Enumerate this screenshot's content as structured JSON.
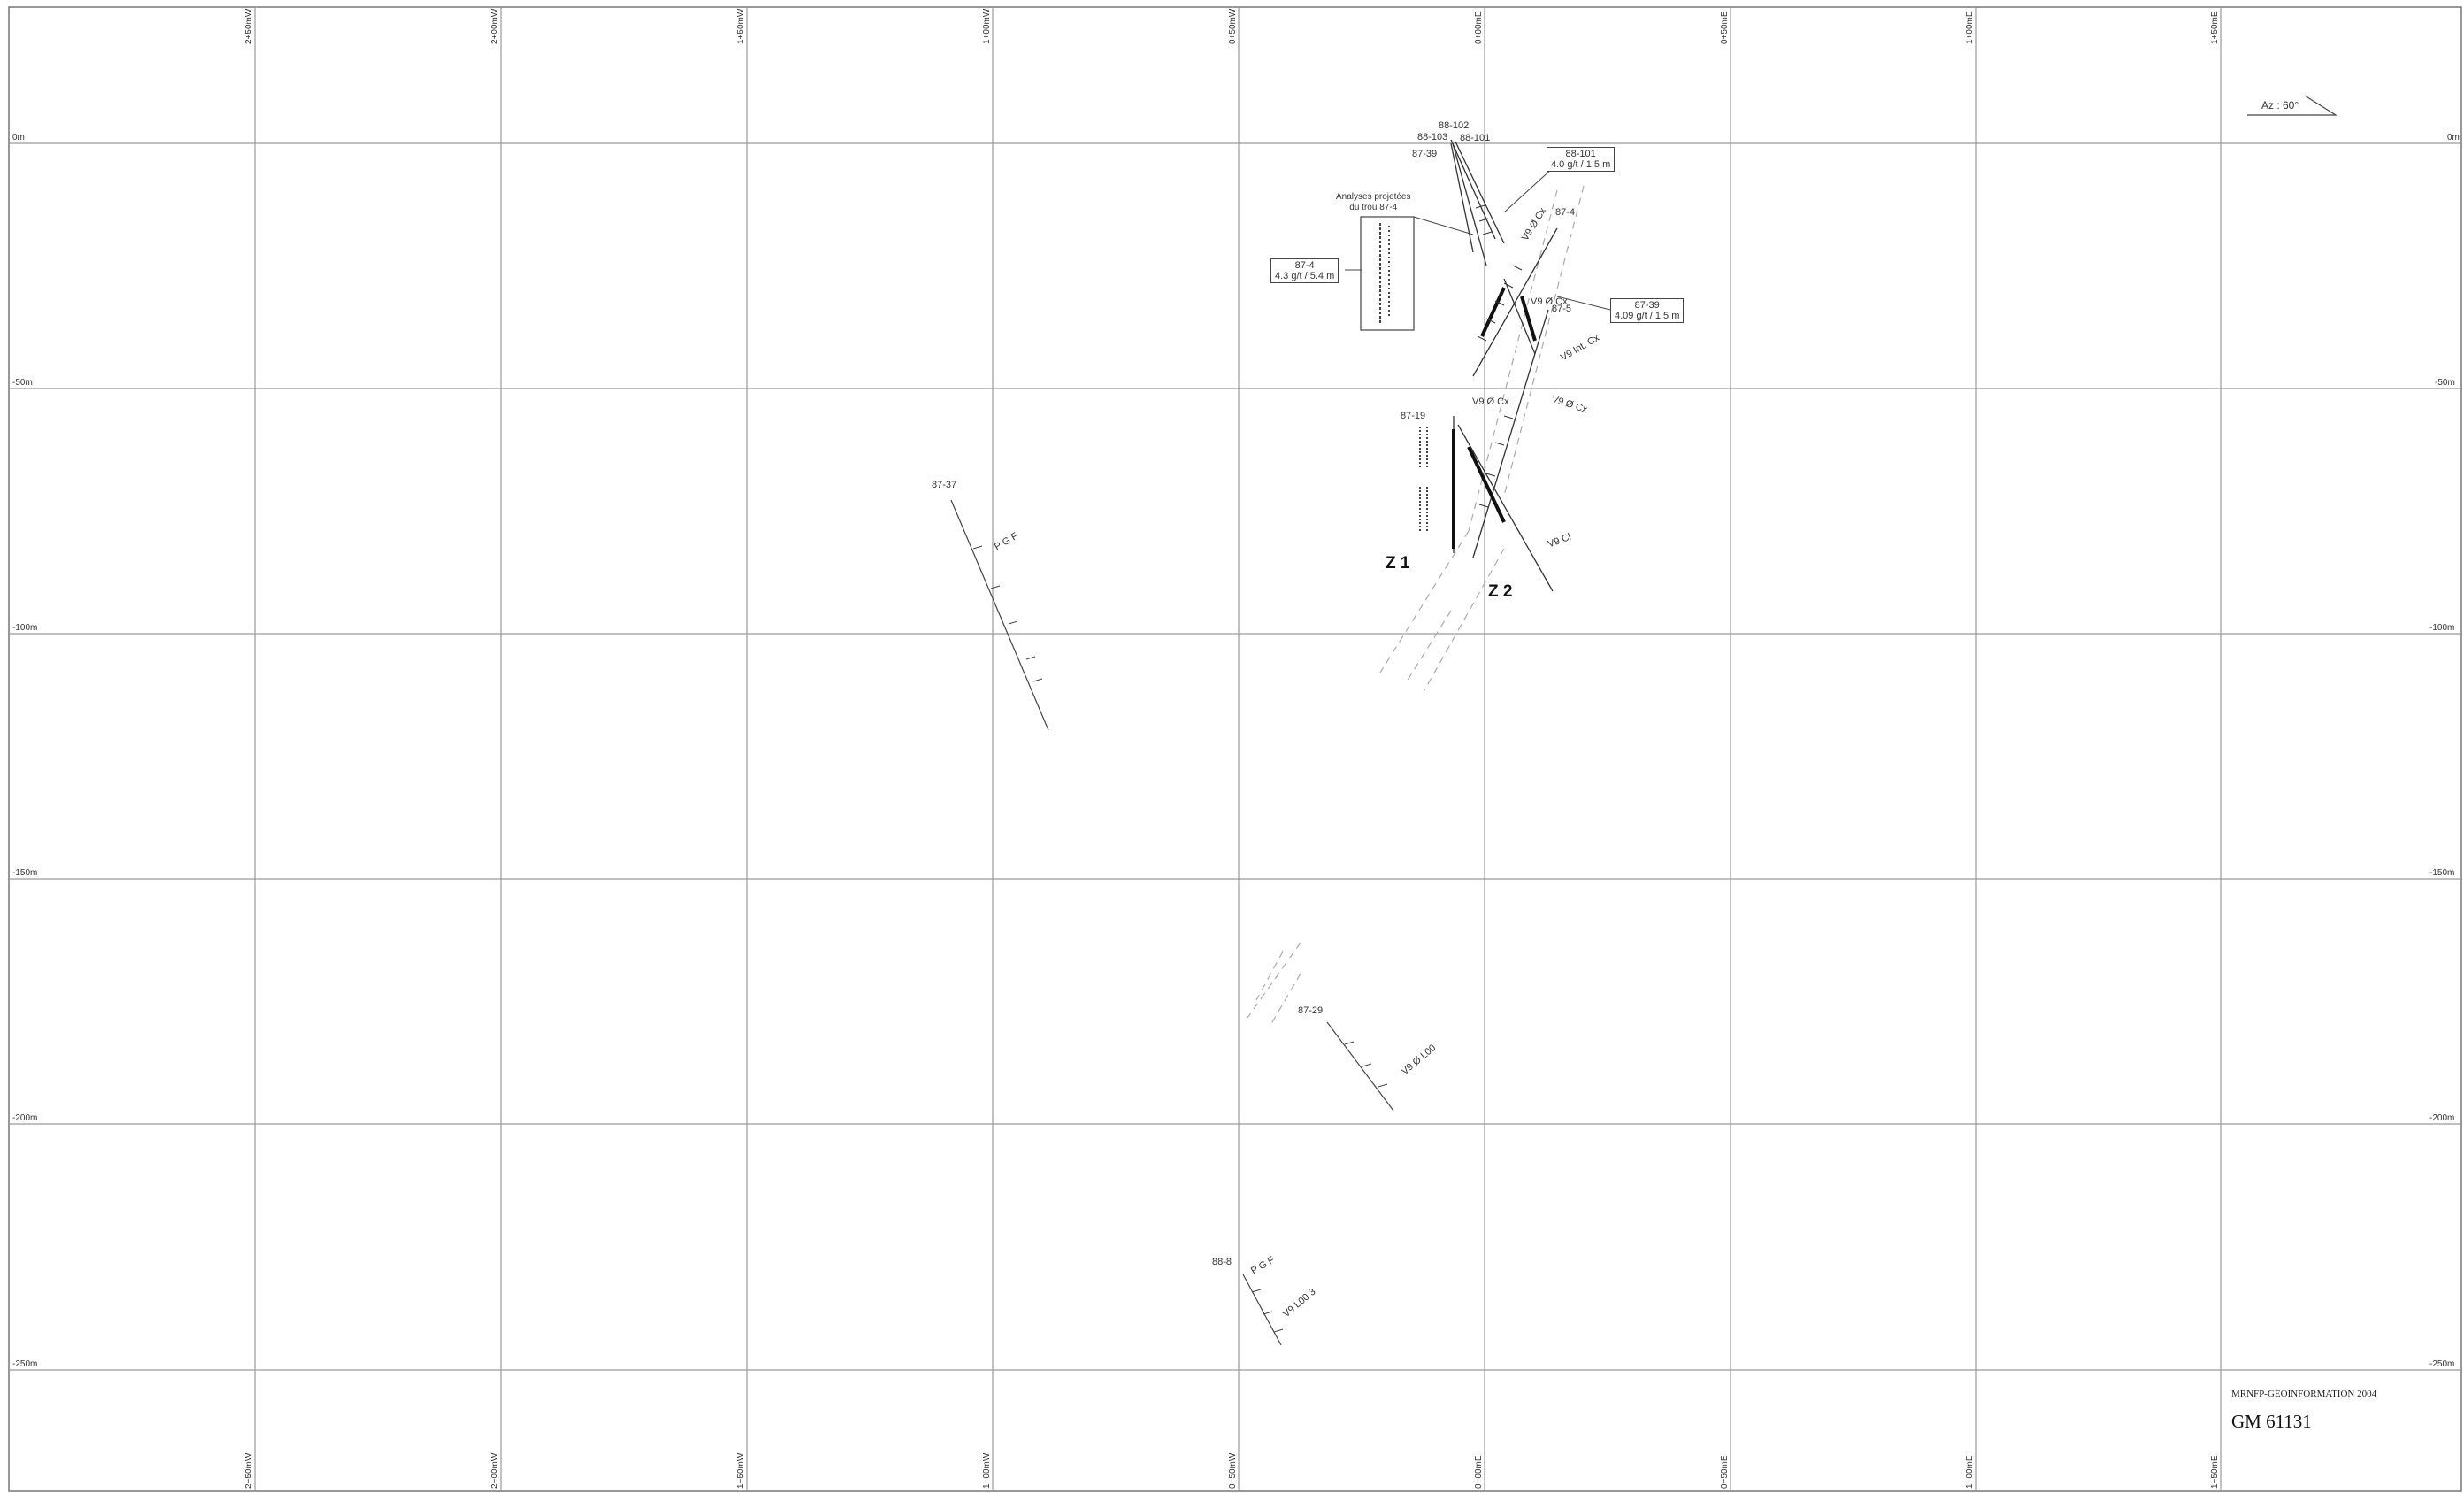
{
  "map": {
    "azimuth_label": "Az : 60°",
    "depth_levels": [
      "0m",
      "-50m",
      "-100m",
      "-150m",
      "-200m",
      "-250m"
    ],
    "section_lines": [
      "2+50mW",
      "2+00mW",
      "1+50mW",
      "1+00mW",
      "0+50mW",
      "0+00mE",
      "0+50mE",
      "1+00mE",
      "1+50mE"
    ],
    "drill_holes": [
      "88-102",
      "88-103",
      "88-101",
      "87-39",
      "87-4",
      "87-5",
      "87-19",
      "87-37",
      "87-29",
      "88-8"
    ],
    "zones": [
      "Z 1",
      "Z 2"
    ],
    "vein_labels": {
      "v1": "V9 Ø Cx",
      "v2": "V9 Ø Cx",
      "v3": "V9 Int. Cx",
      "v4": "V9 Ø Cx",
      "v5": "V9 Ø Cx",
      "v6": "V9 Cl",
      "v7": "V9 Ø L00",
      "v8": "V9 L00 3",
      "pgf1": "P G F",
      "pgf2": "P G F"
    },
    "projection_note": [
      "Analyses projetées",
      "du trou 87-4"
    ],
    "callouts": {
      "c88_101": [
        "88-101",
        "4.0 g/t / 1.5 m"
      ],
      "c87_4": [
        "87-4",
        "4.3 g/t / 5.4 m"
      ],
      "c87_39": [
        "87-39",
        "4.09 g/t / 1.5 m"
      ]
    },
    "credit": "MRNFP-GÉOINFORMATION 2004",
    "sheet_number": "GM 61131",
    "colors": {
      "grid": "#9a9a9a",
      "ink": "#333333",
      "paper": "#ffffff"
    }
  }
}
